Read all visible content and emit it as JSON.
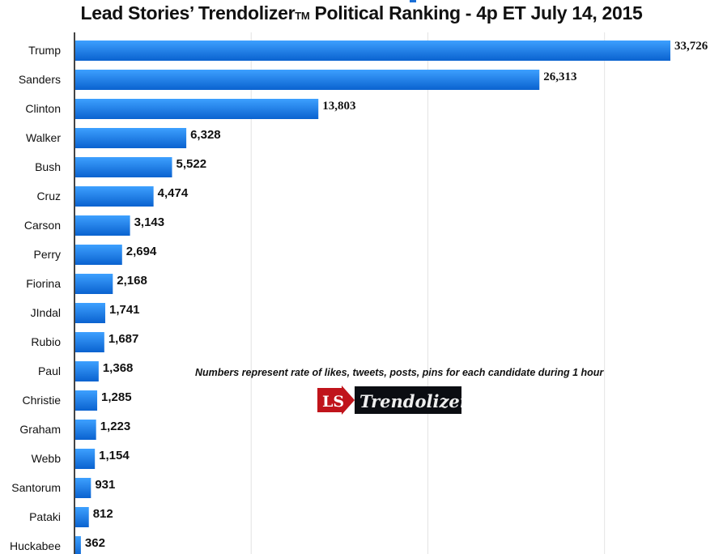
{
  "title": {
    "main": "Lead Stories’ Trendolizer",
    "tm": "TM",
    "rest": " Political Ranking - 4p ET July 14, 2015"
  },
  "note": "Numbers represent rate of likes, tweets, posts, pins for each candidate during 1 hour",
  "logo": {
    "badge": "LS",
    "name": "Trendolizer"
  },
  "chart_data": {
    "type": "bar",
    "orientation": "horizontal",
    "title": "Lead Stories’ Trendolizer™ Political Ranking - 4p ET July 14, 2015",
    "categories": [
      "Trump",
      "Sanders",
      "Clinton",
      "Walker",
      "Bush",
      "Cruz",
      "Carson",
      "Perry",
      "Fiorina",
      "JIndal",
      "Rubio",
      "Paul",
      "Christie",
      "Graham",
      "Webb",
      "Santorum",
      "Pataki",
      "Huckabee"
    ],
    "values": [
      33726,
      26313,
      13803,
      6328,
      5522,
      4474,
      3143,
      2694,
      2168,
      1741,
      1687,
      1368,
      1285,
      1223,
      1154,
      931,
      812,
      362
    ],
    "labels": [
      "33,726",
      "26,313",
      "13,803",
      "6,328",
      "5,522",
      "4,474",
      "3,143",
      "2,694",
      "2,168",
      "1,741",
      "1,687",
      "1,368",
      "1,285",
      "1,223",
      "1,154",
      "931",
      "812",
      "362"
    ],
    "xlim": [
      0,
      40000
    ],
    "gridlines": [
      10000,
      20000,
      30000
    ],
    "grid": true,
    "bar_color": "#1a7fe6",
    "xlabel": "",
    "ylabel": ""
  }
}
